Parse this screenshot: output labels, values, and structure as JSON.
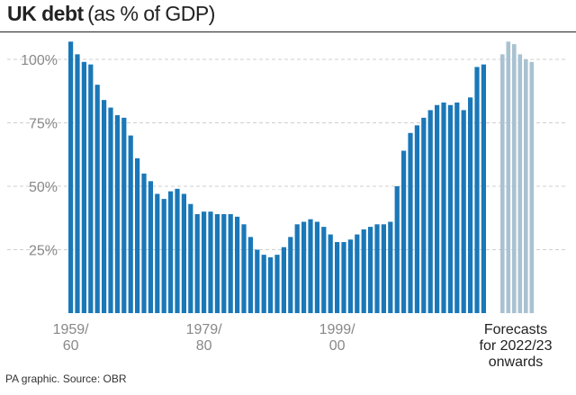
{
  "title": "UK debt",
  "subtitle": "(as % of GDP)",
  "source": "PA graphic. Source: OBR",
  "colors": {
    "actual": "#1a78b8",
    "forecast": "#a9c2d1",
    "grid": "#cfcfcf",
    "tick_text": "#888888"
  },
  "chart_data": {
    "type": "bar",
    "ylim": [
      0,
      110
    ],
    "yticks": [
      25,
      50,
      75,
      100
    ],
    "ytick_labels": [
      "25%",
      "50%",
      "75%",
      "100%"
    ],
    "xtick_labels": [
      {
        "index": 0,
        "lines": [
          "1959/",
          "60"
        ]
      },
      {
        "index": 20,
        "lines": [
          "1979/",
          "80"
        ]
      },
      {
        "index": 40,
        "lines": [
          "1999/",
          "00"
        ]
      }
    ],
    "forecast_label": [
      "Forecasts",
      "for 2022/23",
      "onwards"
    ],
    "series": [
      {
        "type": "actual",
        "start_year": 1959,
        "values": [
          107,
          102,
          99,
          98,
          90,
          84,
          81,
          78,
          77,
          70,
          61,
          55,
          52,
          47,
          45,
          48,
          49,
          47,
          43,
          39,
          40,
          40,
          39,
          39,
          39,
          38,
          35,
          30,
          25,
          23,
          22,
          23,
          26,
          30,
          35,
          36,
          37,
          36,
          34,
          31,
          28,
          28,
          29,
          31,
          33,
          34,
          35,
          35,
          36,
          50,
          64,
          71,
          74,
          77,
          80,
          82,
          83,
          82,
          83,
          80,
          85,
          97,
          98
        ]
      },
      {
        "type": "forecast",
        "start_year": 2022,
        "values": [
          102,
          107,
          106,
          102,
          100,
          99
        ]
      }
    ]
  }
}
